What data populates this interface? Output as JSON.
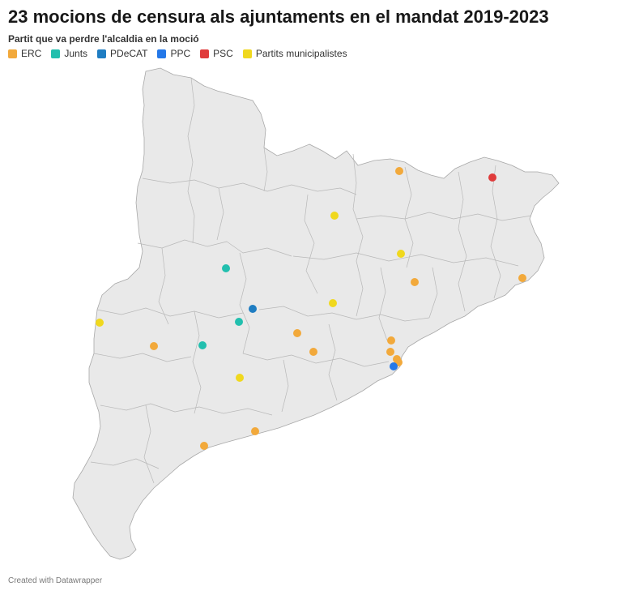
{
  "title": "23 mocions de censura als ajuntaments en el mandat 2019-2023",
  "subtitle": "Partit que va perdre l'alcaldia en la moció",
  "legend": [
    {
      "label": "ERC",
      "color": "#f2a93b"
    },
    {
      "label": "Junts",
      "color": "#22bfae"
    },
    {
      "label": "PDeCAT",
      "color": "#1f7dc2"
    },
    {
      "label": "PPC",
      "color": "#2478e8"
    },
    {
      "label": "PSC",
      "color": "#e03b3b"
    },
    {
      "label": "Partits municipalistes",
      "color": "#f0d81e"
    }
  ],
  "credit": "Created with Datawrapper",
  "map_colors": {
    "land": "#e9e9e9",
    "border": "#a8a8a8"
  },
  "markers": [
    {
      "party": "ERC"
    },
    {
      "party": "ERC"
    },
    {
      "party": "ERC"
    },
    {
      "party": "ERC"
    },
    {
      "party": "ERC"
    },
    {
      "party": "ERC"
    },
    {
      "party": "ERC"
    },
    {
      "party": "ERC"
    },
    {
      "party": "ERC"
    },
    {
      "party": "ERC"
    },
    {
      "party": "ERC"
    },
    {
      "party": "ERC"
    },
    {
      "party": "PSC"
    },
    {
      "party": "PPC"
    },
    {
      "party": "Partits municipalistes"
    },
    {
      "party": "Partits municipalistes"
    },
    {
      "party": "Partits municipalistes"
    },
    {
      "party": "Partits municipalistes"
    },
    {
      "party": "Partits municipalistes"
    },
    {
      "party": "Junts"
    },
    {
      "party": "Junts"
    },
    {
      "party": "Junts"
    },
    {
      "party": "PDeCAT"
    }
  ]
}
